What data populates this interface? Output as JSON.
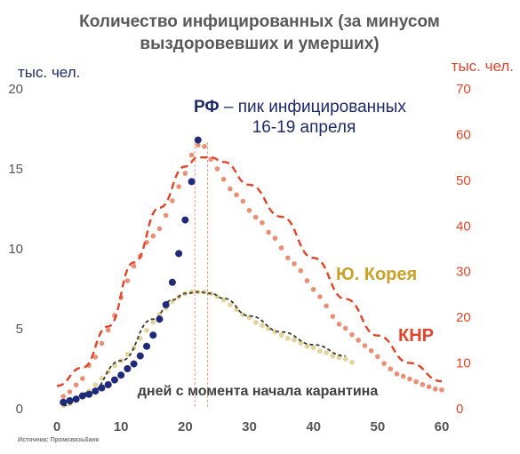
{
  "chart_data": {
    "type": "scatter",
    "title_lines": [
      "Количество инфицированных (за минусом",
      "выздоровевших и умерших)"
    ],
    "ylabel_left": "тыс. чел.",
    "ylabel_right": "тыс. чел.",
    "xlabel": "дней с момента начала карантина",
    "source": "Источник: Промсвязьбанк",
    "xlim": [
      0,
      60
    ],
    "x_ticks": [
      "0",
      "10",
      "20",
      "30",
      "40",
      "50",
      "60"
    ],
    "ylim_left": [
      0,
      20
    ],
    "y_ticks_left": [
      "0",
      "5",
      "10",
      "15",
      "20"
    ],
    "ylim_right": [
      0,
      70
    ],
    "y_ticks_right": [
      "0",
      "10",
      "20",
      "30",
      "40",
      "50",
      "60",
      "70"
    ],
    "annotations": {
      "rf_prefix": "РФ",
      "rf_rest": " – пик инфицированных",
      "rf_line2": "16-19 апреля",
      "korea": "Ю. Корея",
      "china": "КНР"
    },
    "vlines_x": [
      21.5,
      23.5
    ],
    "series": [
      {
        "name": "РФ",
        "axis": "left",
        "color": "#1f2a7a",
        "marker": "large-dot",
        "x": [
          1,
          2,
          3,
          4,
          5,
          6,
          7,
          8,
          9,
          10,
          11,
          12,
          13,
          14,
          15,
          16,
          17,
          18,
          19,
          20,
          21,
          22
        ],
        "y": [
          0.4,
          0.5,
          0.6,
          0.8,
          0.9,
          1.1,
          1.3,
          1.5,
          1.8,
          2.1,
          2.5,
          2.8,
          3.3,
          3.9,
          4.6,
          5.6,
          6.5,
          7.9,
          9.7,
          11.8,
          14.2,
          16.8
        ]
      },
      {
        "name": "КНР",
        "axis": "right",
        "color": "#ea8f74",
        "marker": "dot",
        "x": [
          1,
          2,
          3,
          4,
          5,
          6,
          7,
          8,
          9,
          10,
          11,
          12,
          13,
          14,
          15,
          16,
          17,
          18,
          19,
          20,
          21,
          22,
          23,
          24,
          25,
          26,
          27,
          28,
          29,
          30,
          31,
          32,
          33,
          34,
          35,
          36,
          37,
          38,
          39,
          40,
          41,
          42,
          43,
          44,
          45,
          46,
          47,
          48,
          49,
          50,
          51,
          52,
          53,
          54,
          55,
          56,
          57,
          58,
          59,
          60
        ],
        "y": [
          2.7,
          3.7,
          5.2,
          6.6,
          9.5,
          11.3,
          14.3,
          17.2,
          20.4,
          24.3,
          28.0,
          31.2,
          33.4,
          36.4,
          37.8,
          39.4,
          42.3,
          45.5,
          48.6,
          51.5,
          55.5,
          57.7,
          57.4,
          54.6,
          52.5,
          50.2,
          48.1,
          46.8,
          45.4,
          43.4,
          41.9,
          40.7,
          38.6,
          37.3,
          35.2,
          33.0,
          31.7,
          30.2,
          28.0,
          26.1,
          24.5,
          22.5,
          20.2,
          18.5,
          17.6,
          16.2,
          15.0,
          13.8,
          12.7,
          11.4,
          9.9,
          8.7,
          7.6,
          7.1,
          6.5,
          5.9,
          5.3,
          4.8,
          4.3,
          4.1
        ]
      },
      {
        "name": "КНР (тренд)",
        "axis": "right",
        "color": "#e0452b",
        "marker": "dashed-line",
        "x": [
          0,
          4,
          8,
          12,
          16,
          20,
          22,
          24,
          26,
          30,
          35,
          40,
          45,
          50,
          55,
          60
        ],
        "y": [
          5,
          9,
          18,
          32,
          44,
          53,
          55,
          55,
          54,
          49,
          42,
          33,
          24,
          16,
          10,
          6
        ]
      },
      {
        "name": "Ю. Корея",
        "axis": "left",
        "color": "#e3d29a",
        "marker": "dot",
        "x": [
          1,
          2,
          3,
          4,
          5,
          6,
          7,
          8,
          9,
          10,
          11,
          12,
          13,
          14,
          15,
          16,
          17,
          18,
          19,
          20,
          21,
          22,
          23,
          24,
          25,
          26,
          27,
          28,
          29,
          30,
          31,
          32,
          33,
          34,
          35,
          36,
          37,
          38,
          39,
          40,
          41,
          42,
          43,
          44,
          45,
          46
        ],
        "y": [
          0.2,
          0.3,
          0.5,
          0.8,
          1.1,
          1.5,
          1.9,
          2.3,
          2.7,
          3.0,
          3.4,
          3.8,
          4.4,
          4.9,
          5.4,
          5.9,
          6.3,
          6.7,
          7.0,
          7.2,
          7.3,
          7.3,
          7.3,
          7.2,
          7.0,
          6.8,
          6.5,
          6.2,
          5.9,
          5.7,
          5.4,
          5.2,
          5.0,
          4.8,
          4.6,
          4.4,
          4.3,
          4.1,
          3.9,
          3.8,
          3.6,
          3.5,
          3.3,
          3.2,
          3.1,
          2.9
        ]
      },
      {
        "name": "Ю. Корея (тренд)",
        "axis": "left",
        "color": "#3a3a2a",
        "marker": "dashed-line",
        "x": [
          1,
          5,
          10,
          15,
          18,
          20,
          22,
          24,
          26,
          30,
          35,
          40,
          45
        ],
        "y": [
          0.2,
          1.0,
          3.0,
          5.6,
          6.8,
          7.2,
          7.3,
          7.2,
          6.9,
          5.8,
          4.8,
          4.0,
          3.3
        ]
      }
    ]
  }
}
